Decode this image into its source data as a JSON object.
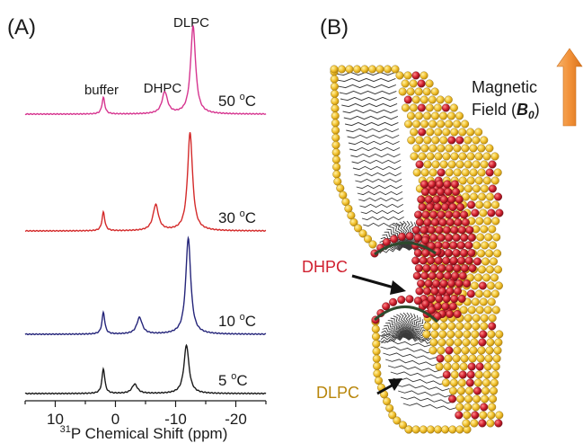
{
  "panel_a": {
    "label": "(A)",
    "peaks": {
      "buffer": "buffer",
      "dhpc": "DHPC",
      "dlpc": "DLPC"
    },
    "x_axis": {
      "label_sup": "31",
      "label_text": "P Chemical Shift (ppm)",
      "ticks": [
        "10",
        "0",
        "-10",
        "-20"
      ]
    }
  },
  "chart_data": {
    "type": "line",
    "title": "",
    "xlabel": "31P Chemical Shift (ppm)",
    "ylabel": "",
    "xlim": [
      15,
      -25
    ],
    "x_reversed": true,
    "grid": false,
    "series": [
      {
        "name": "50 oC",
        "temp_value": "50",
        "color": "#d6348f",
        "peaks": [
          {
            "shift": 2.0,
            "height": 0.16
          },
          {
            "shift": -8.2,
            "height": 0.21
          },
          {
            "shift": -12.9,
            "height": 0.85
          }
        ]
      },
      {
        "name": "30 oC",
        "temp_value": "30",
        "color": "#d42a2a",
        "peaks": [
          {
            "shift": 2.0,
            "height": 0.18
          },
          {
            "shift": -6.7,
            "height": 0.25
          },
          {
            "shift": -12.4,
            "height": 0.95
          }
        ]
      },
      {
        "name": "10 oC",
        "temp_value": "10",
        "color": "#25257a",
        "peaks": [
          {
            "shift": 2.0,
            "height": 0.21
          },
          {
            "shift": -4.0,
            "height": 0.16
          },
          {
            "shift": -12.1,
            "height": 0.93
          }
        ]
      },
      {
        "name": "5 oC",
        "temp_value": "5",
        "color": "#1a1a1a",
        "peaks": [
          {
            "shift": 2.0,
            "height": 0.24
          },
          {
            "shift": -3.2,
            "height": 0.09
          },
          {
            "shift": -11.8,
            "height": 0.47
          }
        ]
      }
    ]
  },
  "panel_b": {
    "label": "(B)",
    "field_line1": "Magnetic",
    "field_line2": "Field (",
    "field_symbol": "B",
    "field_subscript": "0",
    "field_close": ")",
    "dhpc_label": "DHPC",
    "dlpc_label": "DLPC",
    "colors": {
      "dlpc_head": "#f2c12e",
      "dhpc_head": "#d0202f",
      "arrow": "#f29138",
      "dhpc_text": "#d0202f",
      "dlpc_text": "#b8860b"
    }
  }
}
